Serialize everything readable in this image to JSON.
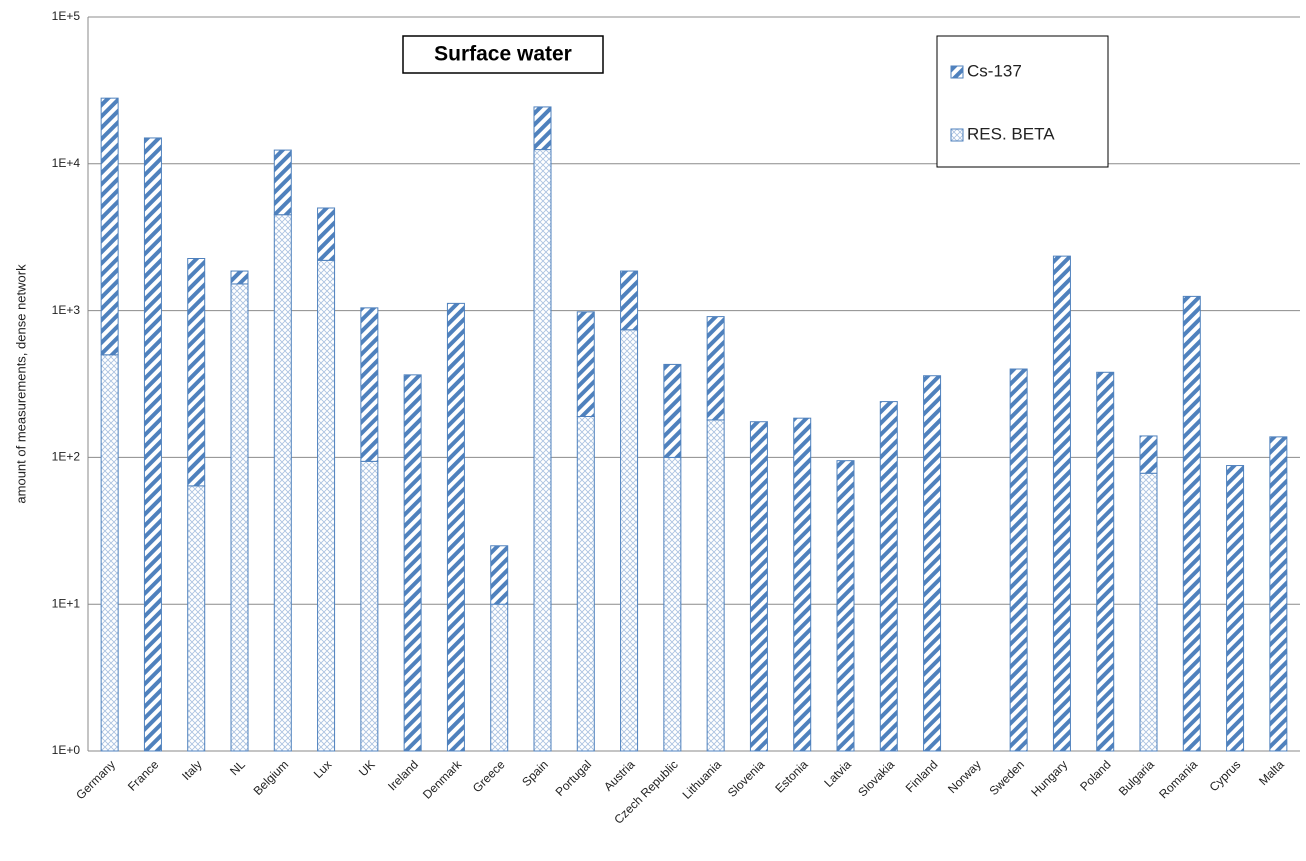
{
  "chart_data": {
    "type": "stacked_bar",
    "title": "Surface water",
    "y_label": "amount of measurements, dense network",
    "log_scale": true,
    "grid": true,
    "categories": [
      "Germany",
      "France",
      "Italy",
      "NL",
      "Belgium",
      "Lux",
      "UK",
      "Ireland",
      "Denmark",
      "Greece",
      "Spain",
      "Portugal",
      "Austria",
      "Czech Republic",
      "Lithuania",
      "Slovenia",
      "Estonia",
      "Latvia",
      "Slovakia",
      "Finland",
      "Norway",
      "Sweden",
      "Hungary",
      "Poland",
      "Bulgaria",
      "Romania",
      "Cyprus",
      "Malta"
    ],
    "series": [
      {
        "name": "RES. BETA",
        "color": "#4f81bd",
        "pattern": "crosshatch",
        "values": [
          500,
          0,
          64,
          1520,
          4500,
          2200,
          94,
          0,
          0,
          10,
          12500,
          190,
          740,
          100,
          180,
          0,
          0,
          0,
          0,
          0,
          0,
          0,
          0,
          0,
          78,
          0,
          0,
          0
        ]
      },
      {
        "name": "Cs-137",
        "color": "#4f81bd",
        "pattern": "stripes",
        "values": [
          27500,
          15000,
          2200,
          340,
          7900,
          2800,
          950,
          365,
          1120,
          15,
          11900,
          790,
          1120,
          330,
          730,
          175,
          185,
          95,
          240,
          360,
          0,
          400,
          2350,
          380,
          62,
          1250,
          88,
          138
        ]
      }
    ],
    "ylim": [
      1,
      100000
    ],
    "yticks": [
      {
        "value": 1,
        "label": "1E+0"
      },
      {
        "value": 10,
        "label": "1E+1"
      },
      {
        "value": 100,
        "label": "1E+2"
      },
      {
        "value": 1000,
        "label": "1E+3"
      },
      {
        "value": 10000,
        "label": "1E+4"
      },
      {
        "value": 100000,
        "label": "1E+5"
      }
    ],
    "legend_position": "upper-right"
  }
}
